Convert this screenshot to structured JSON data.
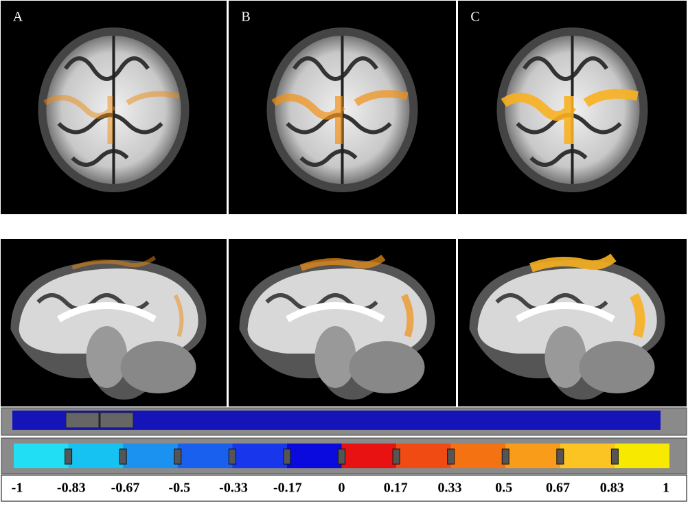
{
  "panels": {
    "labels": [
      "A",
      "B",
      "C"
    ]
  },
  "colorbar": {
    "ticks": [
      "-1",
      "-0.83",
      "-0.67",
      "-0.5",
      "-0.33",
      "-0.17",
      "0",
      "0.17",
      "0.33",
      "0.5",
      "0.67",
      "0.83",
      "1"
    ],
    "colors": [
      "#22def5",
      "#16c2f2",
      "#1b92f0",
      "#1a60ef",
      "#1836ec",
      "#0a0ade",
      "#e81212",
      "#f04b12",
      "#f57212",
      "#f89c1a",
      "#fcc422",
      "#f7ea00"
    ]
  }
}
